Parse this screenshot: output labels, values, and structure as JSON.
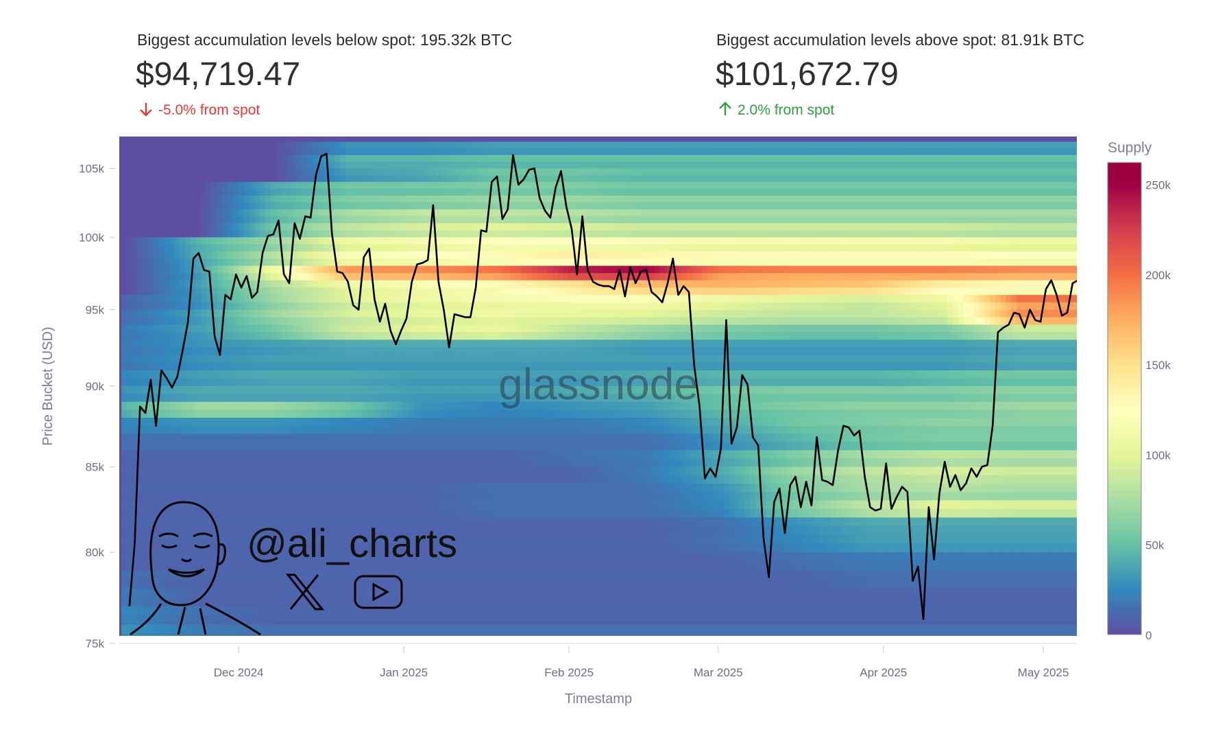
{
  "header": {
    "below": {
      "label": "Biggest accumulation levels below spot: 195.32k BTC",
      "price": "$94,719.47",
      "change": "-5.0% from spot",
      "direction": "down",
      "color": "#e53935"
    },
    "above": {
      "label": "Biggest accumulation levels above spot: 81.91k BTC",
      "price": "$101,672.79",
      "change": "2.0% from spot",
      "direction": "up",
      "color": "#2e9e3e"
    }
  },
  "watermarks": {
    "brand": "glassnode",
    "handle": "@ali_charts",
    "icons": [
      "x-logo-icon",
      "youtube-icon"
    ]
  },
  "chart_data": {
    "type": "heatmap",
    "xlabel": "Timestamp",
    "ylabel": "Price Bucket (USD)",
    "y_scale": "log",
    "ylim_k": [
      75,
      107.4
    ],
    "xlim": [
      "2024-11-08",
      "2025-05-07"
    ],
    "x_ticks": [
      {
        "date": "2024-12-01",
        "label": "Dec 2024"
      },
      {
        "date": "2025-01-01",
        "label": "Jan 2025"
      },
      {
        "date": "2025-02-01",
        "label": "Feb 2025"
      },
      {
        "date": "2025-03-01",
        "label": "Mar 2025"
      },
      {
        "date": "2025-04-01",
        "label": "Apr 2025"
      },
      {
        "date": "2025-05-01",
        "label": "May 2025"
      }
    ],
    "y_ticks": [
      {
        "value": 75,
        "label": "75k"
      },
      {
        "value": 80,
        "label": "80k"
      },
      {
        "value": 85,
        "label": "85k"
      },
      {
        "value": 90,
        "label": "90k"
      },
      {
        "value": 95,
        "label": "95k"
      },
      {
        "value": 100,
        "label": "100k"
      },
      {
        "value": 105,
        "label": "105k"
      }
    ],
    "colorbar": {
      "title": "Supply",
      "range_k": [
        0,
        262
      ],
      "ticks": [
        {
          "value": 0,
          "label": "0"
        },
        {
          "value": 50,
          "label": "50k"
        },
        {
          "value": 100,
          "label": "100k"
        },
        {
          "value": 150,
          "label": "150k"
        },
        {
          "value": 200,
          "label": "200k"
        },
        {
          "value": 250,
          "label": "250k"
        }
      ],
      "colors": [
        "#5e4fa2",
        "#3288bd",
        "#66c2a5",
        "#abdda4",
        "#e6f598",
        "#ffffbf",
        "#fee08b",
        "#fdae61",
        "#f46d43",
        "#d53e4f",
        "#9e0142"
      ]
    },
    "heatmap": {
      "column_dates": [
        "2024-11-09",
        "2024-11-23",
        "2024-12-07",
        "2024-12-21",
        "2025-01-04",
        "2025-01-18",
        "2025-02-01",
        "2025-02-15",
        "2025-03-01",
        "2025-03-15",
        "2025-03-29",
        "2025-04-12",
        "2025-04-26"
      ],
      "price_buckets_k": [
        106,
        105,
        104,
        103,
        102,
        101,
        100,
        99,
        98,
        97,
        96,
        95,
        94,
        93,
        92,
        91,
        90,
        89,
        88,
        87,
        86,
        85,
        84,
        83,
        82,
        81,
        80,
        79,
        78,
        77,
        76,
        75
      ],
      "supply_k": [
        [
          0,
          0,
          0,
          30,
          30,
          35,
          35,
          35,
          35,
          35,
          35,
          35,
          35
        ],
        [
          0,
          0,
          0,
          45,
          45,
          50,
          50,
          50,
          50,
          50,
          50,
          50,
          50
        ],
        [
          0,
          0,
          0,
          35,
          40,
          55,
          55,
          50,
          50,
          50,
          50,
          50,
          50
        ],
        [
          0,
          0,
          40,
          55,
          55,
          60,
          60,
          55,
          55,
          55,
          55,
          55,
          55
        ],
        [
          0,
          0,
          45,
          60,
          65,
          70,
          70,
          65,
          65,
          65,
          65,
          65,
          65
        ],
        [
          0,
          0,
          50,
          75,
          85,
          85,
          80,
          75,
          75,
          75,
          75,
          75,
          75
        ],
        [
          0,
          0,
          55,
          85,
          95,
          100,
          95,
          90,
          90,
          90,
          90,
          90,
          85
        ],
        [
          0,
          45,
          70,
          110,
          115,
          125,
          125,
          120,
          115,
          115,
          115,
          115,
          110
        ],
        [
          0,
          40,
          80,
          120,
          125,
          130,
          140,
          135,
          130,
          130,
          130,
          130,
          125
        ],
        [
          0,
          35,
          110,
          185,
          190,
          200,
          240,
          250,
          200,
          195,
          195,
          195,
          190
        ],
        [
          0,
          35,
          80,
          110,
          120,
          130,
          150,
          170,
          175,
          170,
          165,
          140,
          130
        ],
        [
          10,
          30,
          70,
          100,
          110,
          115,
          120,
          120,
          110,
          100,
          95,
          110,
          200
        ],
        [
          15,
          35,
          70,
          95,
          105,
          110,
          105,
          100,
          90,
          85,
          85,
          95,
          190
        ],
        [
          20,
          35,
          55,
          90,
          100,
          105,
          85,
          70,
          60,
          55,
          55,
          60,
          90
        ],
        [
          20,
          30,
          35,
          40,
          40,
          40,
          40,
          35,
          35,
          35,
          35,
          35,
          40
        ],
        [
          20,
          30,
          35,
          35,
          35,
          35,
          35,
          35,
          35,
          35,
          35,
          35,
          40
        ],
        [
          25,
          35,
          40,
          40,
          35,
          35,
          35,
          40,
          45,
          45,
          45,
          50,
          55
        ],
        [
          30,
          40,
          40,
          40,
          35,
          35,
          40,
          45,
          55,
          60,
          60,
          60,
          65
        ],
        [
          45,
          70,
          70,
          55,
          30,
          25,
          30,
          35,
          50,
          60,
          65,
          65,
          70
        ],
        [
          25,
          30,
          30,
          25,
          20,
          20,
          20,
          25,
          40,
          55,
          60,
          65,
          65
        ],
        [
          15,
          15,
          15,
          15,
          15,
          15,
          15,
          15,
          30,
          45,
          55,
          60,
          60
        ],
        [
          10,
          10,
          10,
          10,
          10,
          10,
          15,
          20,
          40,
          60,
          75,
          85,
          80
        ],
        [
          10,
          10,
          10,
          10,
          10,
          10,
          10,
          20,
          40,
          70,
          85,
          95,
          90
        ],
        [
          10,
          10,
          10,
          10,
          10,
          15,
          15,
          15,
          30,
          60,
          75,
          80,
          75
        ],
        [
          10,
          10,
          10,
          10,
          10,
          15,
          15,
          15,
          25,
          60,
          85,
          100,
          95
        ],
        [
          10,
          10,
          10,
          10,
          10,
          10,
          10,
          10,
          15,
          30,
          40,
          40,
          40
        ],
        [
          10,
          10,
          10,
          10,
          10,
          10,
          10,
          10,
          15,
          25,
          35,
          35,
          35
        ],
        [
          10,
          10,
          10,
          10,
          10,
          10,
          10,
          10,
          10,
          15,
          20,
          20,
          20
        ],
        [
          15,
          10,
          10,
          10,
          10,
          10,
          10,
          10,
          10,
          10,
          15,
          15,
          15
        ],
        [
          20,
          10,
          10,
          10,
          10,
          10,
          10,
          10,
          10,
          10,
          10,
          10,
          10
        ],
        [
          25,
          15,
          10,
          10,
          10,
          10,
          10,
          10,
          10,
          10,
          10,
          10,
          10
        ],
        [
          30,
          20,
          15,
          15,
          15,
          15,
          15,
          15,
          15,
          15,
          15,
          15,
          15
        ]
      ]
    },
    "price_line": {
      "color": "#000000",
      "start_date": "2024-11-10",
      "interval": "1 day",
      "price_k": [
        77.0,
        80.5,
        88.7,
        88.3,
        90.4,
        87.5,
        91.0,
        90.5,
        89.9,
        90.6,
        92.3,
        94.2,
        98.5,
        98.9,
        97.7,
        97.6,
        93.2,
        92.0,
        96.0,
        95.7,
        97.4,
        96.5,
        97.3,
        95.8,
        96.2,
        98.9,
        100.1,
        100.2,
        101.2,
        97.4,
        96.8,
        101.0,
        99.9,
        101.5,
        101.4,
        104.5,
        105.9,
        106.1,
        100.3,
        97.6,
        97.5,
        96.9,
        95.3,
        95.0,
        98.6,
        99.2,
        95.7,
        94.2,
        95.4,
        93.6,
        92.7,
        93.6,
        94.4,
        96.9,
        98.1,
        98.2,
        98.4,
        102.3,
        96.9,
        95.0,
        92.5,
        94.7,
        94.6,
        94.5,
        94.5,
        96.5,
        100.5,
        100.4,
        104.0,
        104.4,
        101.3,
        102.0,
        106.0,
        103.8,
        104.2,
        104.9,
        105.0,
        102.8,
        101.9,
        101.4,
        103.6,
        104.8,
        102.2,
        100.6,
        97.4,
        101.5,
        97.7,
        96.9,
        96.7,
        96.6,
        96.6,
        96.4,
        97.7,
        95.9,
        97.9,
        96.8,
        97.6,
        97.7,
        96.2,
        95.9,
        95.5,
        96.8,
        98.5,
        96.0,
        96.6,
        96.2,
        91.3,
        88.7,
        84.3,
        84.9,
        84.4,
        86.1,
        94.3,
        86.4,
        87.4,
        90.7,
        90.1,
        86.8,
        86.3,
        80.8,
        78.6,
        82.9,
        83.7,
        81.1,
        83.9,
        84.4,
        82.6,
        84.1,
        82.7,
        86.8,
        84.2,
        84.1,
        83.9,
        86.0,
        87.5,
        87.4,
        86.9,
        87.2,
        84.4,
        82.6,
        82.4,
        82.5,
        85.2,
        82.5,
        83.2,
        83.8,
        83.5,
        78.4,
        79.2,
        76.3,
        82.6,
        79.6,
        83.4,
        85.3,
        83.8,
        84.5,
        83.6,
        84.0,
        84.9,
        84.4,
        85.0,
        85.1,
        87.5,
        93.5,
        93.8,
        94.0,
        94.8,
        94.7,
        93.8,
        95.0,
        94.3,
        94.2,
        96.4,
        97.0,
        96.0,
        94.6,
        94.8,
        96.8,
        97.0
      ]
    }
  }
}
